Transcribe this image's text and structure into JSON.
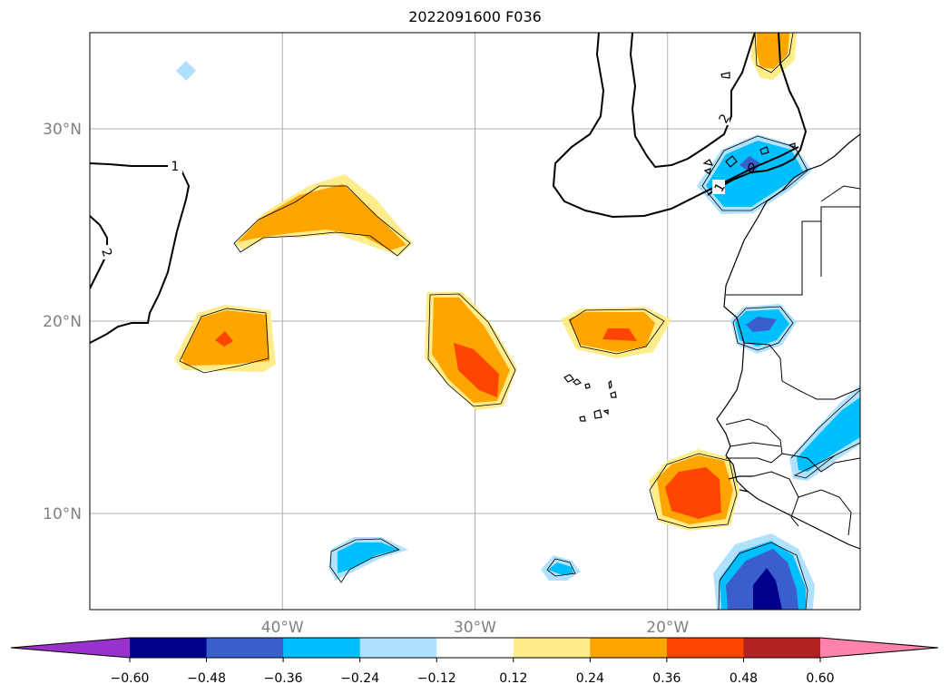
{
  "title": "2022091600 F036",
  "map": {
    "lon_range": [
      -50,
      -10
    ],
    "lat_range": [
      5,
      35
    ],
    "lon_ticks": [
      {
        "value": -40,
        "label": "40°W"
      },
      {
        "value": -30,
        "label": "30°W"
      },
      {
        "value": -20,
        "label": "20°W"
      }
    ],
    "lat_ticks": [
      {
        "value": 30,
        "label": "30°N"
      },
      {
        "value": 20,
        "label": "20°N"
      },
      {
        "value": 10,
        "label": "10°N"
      }
    ],
    "gridlines": true,
    "contour_labels": [
      "1",
      "2",
      "2",
      "1",
      "0"
    ]
  },
  "colorbar": {
    "extend": "both",
    "colors": [
      "#9932cc",
      "#00008b",
      "#3a5fcd",
      "#00bfff",
      "#b0e2ff",
      "#ffffff",
      "#ffec8b",
      "#ffa500",
      "#ff4500",
      "#b22222",
      "#ff82ab"
    ],
    "tick_labels": [
      "−0.60",
      "−0.48",
      "−0.36",
      "−0.24",
      "−0.12",
      "0.12",
      "0.24",
      "0.36",
      "0.48",
      "0.60"
    ]
  }
}
